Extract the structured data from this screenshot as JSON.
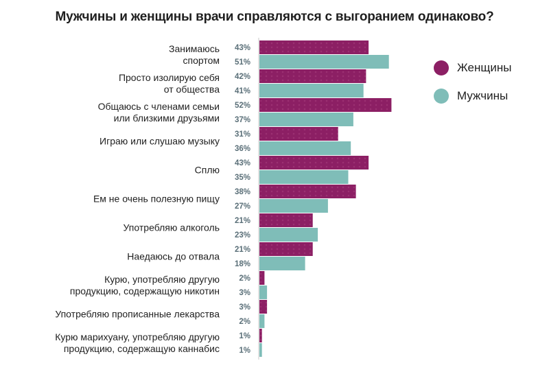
{
  "chart_data": {
    "type": "bar",
    "orientation": "horizontal",
    "title": "Мужчины и женщины врачи справляются с выгоранием одинаково?",
    "categories": [
      [
        "Занимаюсь",
        "спортом"
      ],
      [
        "Просто изолирую себя",
        "от общества"
      ],
      [
        "Общаюсь с членами семьи",
        "или близкими друзьями"
      ],
      [
        "Играю или слушаю музыку"
      ],
      [
        "Сплю"
      ],
      [
        "Ем не очень полезную пищу"
      ],
      [
        "Употребляю алкоголь"
      ],
      [
        "Наедаюсь до отвала"
      ],
      [
        "Курю, употребляю другую",
        "продукцию, содержащую никотин"
      ],
      [
        "Употребляю прописанные лекарства"
      ],
      [
        "Курю марихуану, употребляю другую",
        "продукцию, содержащую каннабис"
      ]
    ],
    "series": [
      {
        "name": "Женщины",
        "color": "#8c1f64",
        "values": [
          43,
          42,
          52,
          31,
          43,
          38,
          21,
          21,
          2,
          3,
          1
        ],
        "labels": [
          "43%",
          "42%",
          "52%",
          "31%",
          "43%",
          "38%",
          "21%",
          "21%",
          "2%",
          "3%",
          "1%"
        ]
      },
      {
        "name": "Мужчины",
        "color": "#7fbdb8",
        "values": [
          51,
          41,
          37,
          36,
          35,
          27,
          23,
          18,
          3,
          2,
          1
        ],
        "labels": [
          "51%",
          "41%",
          "37%",
          "36%",
          "35%",
          "27%",
          "23%",
          "18%",
          "3%",
          "2%",
          "1%"
        ]
      }
    ],
    "xlim": [
      0,
      55
    ],
    "legend": "top-right"
  }
}
